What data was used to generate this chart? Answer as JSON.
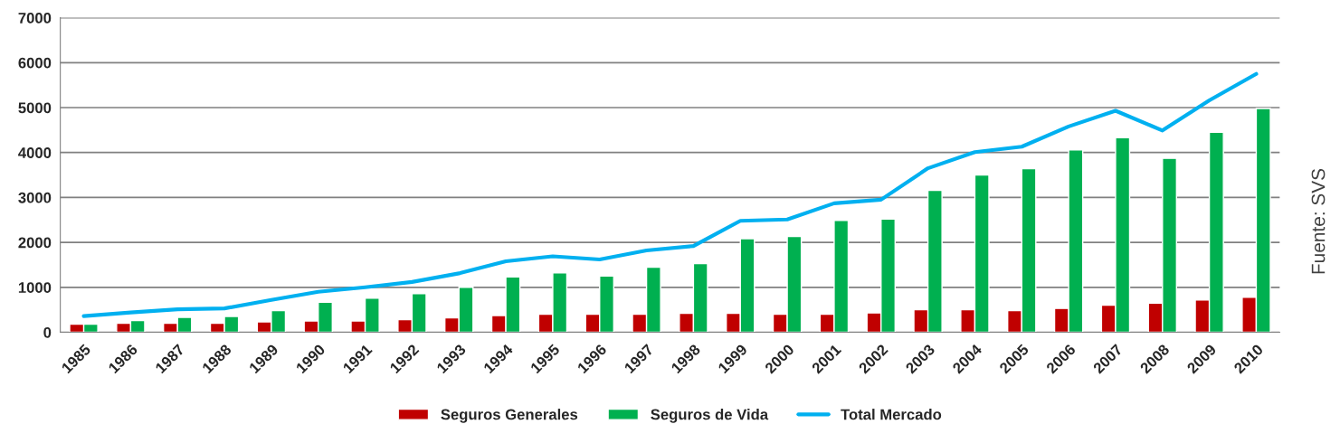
{
  "chart_data": {
    "type": "bar",
    "categories": [
      "1985",
      "1986",
      "1987",
      "1988",
      "1989",
      "1990",
      "1991",
      "1992",
      "1993",
      "1994",
      "1995",
      "1996",
      "1997",
      "1998",
      "1999",
      "2000",
      "2001",
      "2002",
      "2003",
      "2004",
      "2005",
      "2006",
      "2007",
      "2008",
      "2009",
      "2010"
    ],
    "series": [
      {
        "name": "Seguros Generales",
        "color": "#c00000",
        "values": [
          180,
          200,
          200,
          200,
          230,
          250,
          250,
          280,
          320,
          370,
          400,
          400,
          400,
          420,
          420,
          400,
          400,
          430,
          500,
          500,
          480,
          530,
          600,
          650,
          720,
          780
        ]
      },
      {
        "name": "Seguros de Vida",
        "color": "#00b050",
        "values": [
          180,
          260,
          330,
          350,
          480,
          670,
          760,
          860,
          1000,
          1230,
          1320,
          1250,
          1450,
          1530,
          2080,
          2130,
          2490,
          2520,
          3160,
          3500,
          3640,
          4060,
          4330,
          3870,
          4450,
          4980
        ]
      },
      {
        "name": "Total Mercado",
        "type": "line",
        "color": "#00b0f0",
        "values": [
          360,
          440,
          510,
          530,
          720,
          900,
          1000,
          1120,
          1310,
          1580,
          1690,
          1620,
          1820,
          1920,
          2480,
          2510,
          2870,
          2950,
          3650,
          4010,
          4130,
          4580,
          4930,
          4490,
          5160,
          5750
        ]
      }
    ],
    "ylim": [
      0,
      7000
    ],
    "yticks": [
      0,
      1000,
      2000,
      3000,
      4000,
      5000,
      6000,
      7000
    ],
    "grid": "y",
    "legend": "bottom",
    "marker": "none",
    "line_style": "solid",
    "annotations": [
      "Fuente: SVS"
    ]
  }
}
